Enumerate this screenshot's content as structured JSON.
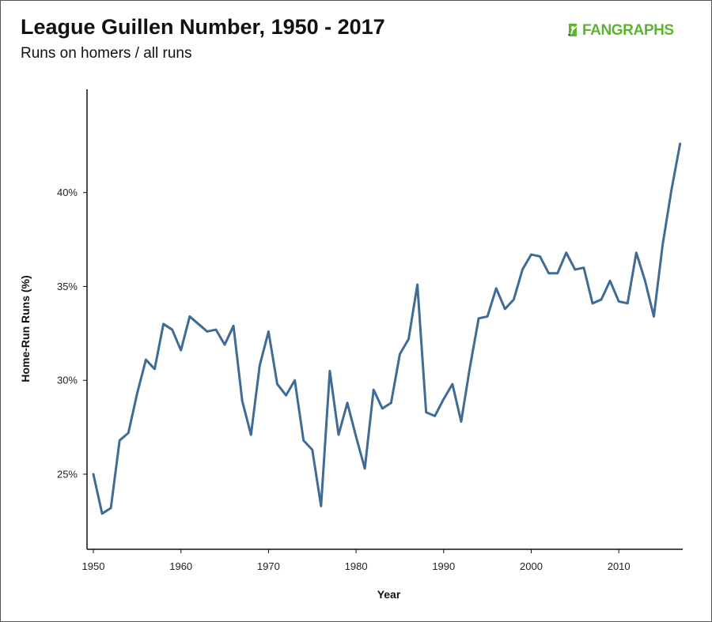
{
  "header": {
    "title": "League Guillen Number, 1950 - 2017",
    "subtitle": "Runs on homers / all runs",
    "logo_text": "FANGRAPHS"
  },
  "colors": {
    "line": "#3f6b95",
    "axis": "#111111",
    "logo": "#5cb531"
  },
  "chart_data": {
    "type": "line",
    "title": "League Guillen Number, 1950 - 2017",
    "subtitle": "Runs on homers / all runs",
    "xlabel": "Year",
    "ylabel": "Home-Run Runs (%)",
    "xlim": [
      1950,
      2017
    ],
    "ylim": [
      21,
      45.5
    ],
    "x_ticks": [
      1950,
      1960,
      1970,
      1980,
      1990,
      2000,
      2010
    ],
    "x_tick_labels": [
      "1950",
      "1960",
      "1970",
      "1980",
      "1990",
      "2000",
      "2010"
    ],
    "y_ticks": [
      25,
      30,
      35,
      40
    ],
    "y_tick_labels": [
      "25%",
      "30%",
      "35%",
      "40%"
    ],
    "grid": false,
    "series": [
      {
        "x": [
          1950,
          1951,
          1952,
          1953,
          1954,
          1955,
          1956,
          1957,
          1958,
          1959,
          1960,
          1961,
          1962,
          1963,
          1964,
          1965,
          1966,
          1967,
          1968,
          1969,
          1970,
          1971,
          1972,
          1973,
          1974,
          1975,
          1976,
          1977,
          1978,
          1979,
          1980,
          1981,
          1982,
          1983,
          1984,
          1985,
          1986,
          1987,
          1988,
          1989,
          1990,
          1991,
          1992,
          1993,
          1994,
          1995,
          1996,
          1997,
          1998,
          1999,
          2000,
          2001,
          2002,
          2003,
          2004,
          2005,
          2006,
          2007,
          2008,
          2009,
          2010,
          2011,
          2012,
          2013,
          2014,
          2015,
          2016,
          2017
        ],
        "values": [
          25.0,
          22.9,
          23.2,
          26.8,
          27.2,
          29.3,
          31.1,
          30.6,
          33.0,
          32.7,
          31.6,
          33.4,
          33.0,
          32.6,
          32.7,
          31.9,
          32.9,
          28.9,
          27.1,
          30.8,
          32.6,
          29.8,
          29.2,
          30.0,
          26.8,
          26.3,
          23.3,
          30.5,
          27.1,
          28.8,
          27.0,
          25.3,
          29.5,
          28.5,
          28.8,
          31.4,
          32.2,
          35.1,
          28.3,
          28.1,
          29.0,
          29.8,
          27.8,
          30.7,
          33.3,
          33.4,
          34.9,
          33.8,
          34.3,
          35.9,
          36.7,
          36.6,
          35.7,
          35.7,
          36.8,
          35.9,
          36.0,
          34.1,
          34.3,
          35.3,
          34.2,
          34.1,
          36.8,
          35.3,
          33.4,
          37.2,
          40.1,
          42.6
        ]
      }
    ]
  }
}
